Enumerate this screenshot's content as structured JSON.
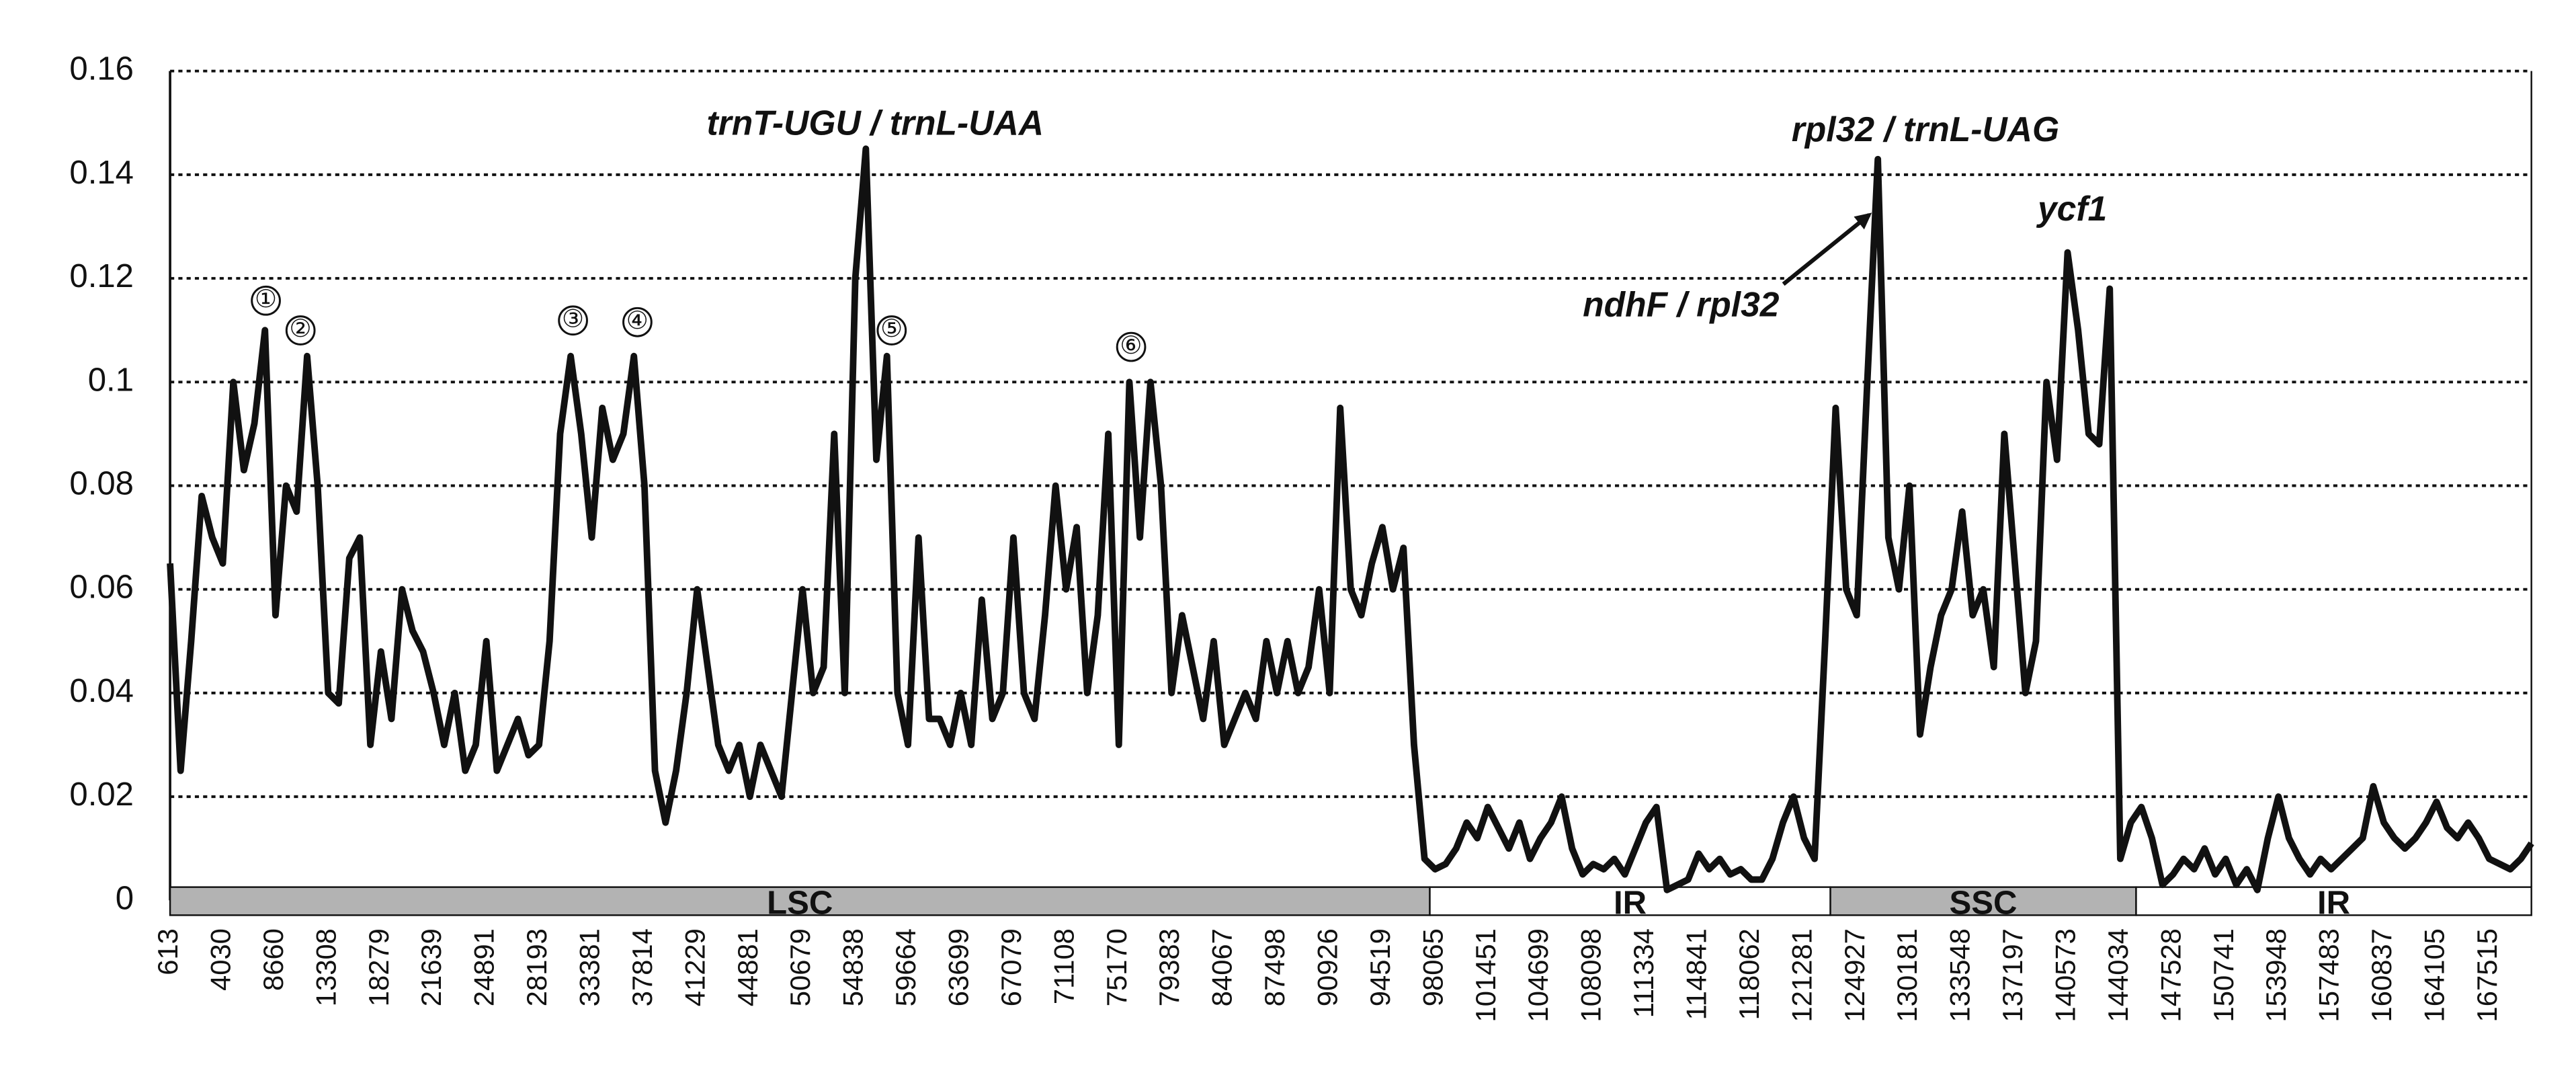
{
  "chart_data": {
    "type": "line",
    "categories": [
      "613",
      null,
      null,
      null,
      null,
      "4030",
      null,
      null,
      null,
      null,
      "8660",
      null,
      null,
      null,
      null,
      "13308",
      null,
      null,
      null,
      null,
      "18279",
      null,
      null,
      null,
      null,
      "21639",
      null,
      null,
      null,
      null,
      "24891",
      null,
      null,
      null,
      null,
      "28193",
      null,
      null,
      null,
      null,
      "33381",
      null,
      null,
      null,
      null,
      "37814",
      null,
      null,
      null,
      null,
      "41229",
      null,
      null,
      null,
      null,
      "44881",
      null,
      null,
      null,
      null,
      "50679",
      null,
      null,
      null,
      null,
      "54838",
      null,
      null,
      null,
      null,
      "59664",
      null,
      null,
      null,
      null,
      "63699",
      null,
      null,
      null,
      null,
      "67079",
      null,
      null,
      null,
      null,
      "71108",
      null,
      null,
      null,
      null,
      "75170",
      null,
      null,
      null,
      null,
      "79383",
      null,
      null,
      null,
      null,
      "84067",
      null,
      null,
      null,
      null,
      "87498",
      null,
      null,
      null,
      null,
      "90926",
      null,
      null,
      null,
      null,
      "94519",
      null,
      null,
      null,
      null,
      "98065",
      null,
      null,
      null,
      null,
      "101451",
      null,
      null,
      null,
      null,
      "104699",
      null,
      null,
      null,
      null,
      "108098",
      null,
      null,
      null,
      null,
      "111334",
      null,
      null,
      null,
      null,
      "114841",
      null,
      null,
      null,
      null,
      "118062",
      null,
      null,
      null,
      null,
      "121281",
      null,
      null,
      null,
      null,
      "124927",
      null,
      null,
      null,
      null,
      "130181",
      null,
      null,
      null,
      null,
      "133548",
      null,
      null,
      null,
      null,
      "137197",
      null,
      null,
      null,
      null,
      "140573",
      null,
      null,
      null,
      null,
      "144034",
      null,
      null,
      null,
      null,
      "147528",
      null,
      null,
      null,
      null,
      "150741",
      null,
      null,
      null,
      null,
      "153948",
      null,
      null,
      null,
      null,
      "157483",
      null,
      null,
      null,
      null,
      "160837",
      null,
      null,
      null,
      null,
      "164105",
      null,
      null,
      null,
      null,
      "167515",
      null,
      null,
      null,
      null
    ],
    "values": [
      0.065,
      0.025,
      0.05,
      0.078,
      0.07,
      0.065,
      0.1,
      0.083,
      0.092,
      0.11,
      0.055,
      0.08,
      0.075,
      0.105,
      0.08,
      0.04,
      0.038,
      0.066,
      0.07,
      0.03,
      0.048,
      0.035,
      0.06,
      0.052,
      0.048,
      0.04,
      0.03,
      0.04,
      0.025,
      0.03,
      0.05,
      0.025,
      0.03,
      0.035,
      0.028,
      0.03,
      0.05,
      0.09,
      0.105,
      0.09,
      0.07,
      0.095,
      0.085,
      0.09,
      0.105,
      0.08,
      0.025,
      0.015,
      0.025,
      0.04,
      0.06,
      0.045,
      0.03,
      0.025,
      0.03,
      0.02,
      0.03,
      0.025,
      0.02,
      0.04,
      0.06,
      0.04,
      0.045,
      0.09,
      0.04,
      0.12,
      0.145,
      0.085,
      0.105,
      0.04,
      0.03,
      0.07,
      0.035,
      0.035,
      0.03,
      0.04,
      0.03,
      0.058,
      0.035,
      0.04,
      0.07,
      0.04,
      0.035,
      0.055,
      0.08,
      0.06,
      0.072,
      0.04,
      0.055,
      0.09,
      0.03,
      0.1,
      0.07,
      0.1,
      0.08,
      0.04,
      0.055,
      0.045,
      0.035,
      0.05,
      0.03,
      0.035,
      0.04,
      0.035,
      0.05,
      0.04,
      0.05,
      0.04,
      0.045,
      0.06,
      0.04,
      0.095,
      0.06,
      0.055,
      0.065,
      0.072,
      0.06,
      0.068,
      0.03,
      0.008,
      0.006,
      0.007,
      0.01,
      0.015,
      0.012,
      0.018,
      0.014,
      0.01,
      0.015,
      0.008,
      0.012,
      0.015,
      0.02,
      0.01,
      0.005,
      0.007,
      0.006,
      0.008,
      0.005,
      0.01,
      0.015,
      0.018,
      0.002,
      0.003,
      0.004,
      0.009,
      0.006,
      0.008,
      0.005,
      0.006,
      0.004,
      0.004,
      0.008,
      0.015,
      0.02,
      0.012,
      0.008,
      0.05,
      0.095,
      0.06,
      0.055,
      0.1,
      0.143,
      0.07,
      0.06,
      0.08,
      0.032,
      0.045,
      0.055,
      0.06,
      0.075,
      0.055,
      0.06,
      0.045,
      0.09,
      0.065,
      0.04,
      0.05,
      0.1,
      0.085,
      0.125,
      0.11,
      0.09,
      0.088,
      0.118,
      0.008,
      0.015,
      0.018,
      0.012,
      0.003,
      0.005,
      0.008,
      0.006,
      0.01,
      0.005,
      0.008,
      0.003,
      0.006,
      0.002,
      0.012,
      0.02,
      0.012,
      0.008,
      0.005,
      0.008,
      0.006,
      0.008,
      0.01,
      0.012,
      0.022,
      0.015,
      0.012,
      0.01,
      0.012,
      0.015,
      0.019,
      0.014,
      0.012,
      0.015,
      0.012,
      0.008,
      0.007,
      0.006,
      0.008,
      0.011
    ],
    "color": "#111111",
    "ylim": [
      0,
      0.16
    ],
    "yticks": [
      0,
      0.02,
      0.04,
      0.06,
      0.08,
      0.1,
      0.12,
      0.14,
      0.16
    ],
    "grid": true,
    "regions": [
      {
        "label": "LSC",
        "color": "#b3b3b3"
      },
      {
        "label": "IR",
        "color": "#ffffff"
      },
      {
        "label": "SSC",
        "color": "#b3b3b3"
      },
      {
        "label": "IR",
        "color": "#ffffff"
      }
    ],
    "annotations": [
      "trnT-UGU / trnL-UAA",
      "rpl32 / trnL-UAG",
      "ycf1",
      "ndhF / rpl32",
      "①",
      "②",
      "③",
      "④",
      "⑤",
      "⑥"
    ]
  }
}
